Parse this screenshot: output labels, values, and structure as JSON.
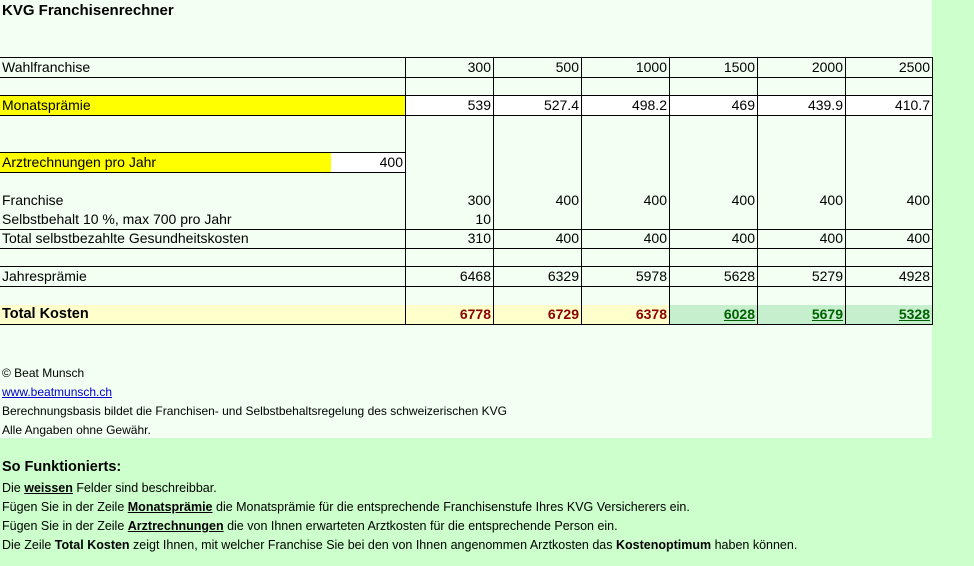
{
  "title": "KVG Franchisenrechner",
  "rows": {
    "wahlfranchise": {
      "label": "Wahlfranchise",
      "values": [
        "300",
        "500",
        "1000",
        "1500",
        "2000",
        "2500"
      ]
    },
    "monatspraemie": {
      "label": "Monatsprämie",
      "values": [
        "539",
        "527.4",
        "498.2",
        "469",
        "439.9",
        "410.7"
      ]
    },
    "arztrechnungen": {
      "label": "Arztrechnungen pro Jahr",
      "value": "400"
    },
    "franchise": {
      "label": "Franchise",
      "values": [
        "300",
        "400",
        "400",
        "400",
        "400",
        "400"
      ]
    },
    "selbstbehalt": {
      "label": "Selbstbehalt 10 %, max 700 pro Jahr",
      "values": [
        "10"
      ]
    },
    "total_selbst": {
      "label": "Total selbstbezahlte Gesundheitskosten",
      "values": [
        "310",
        "400",
        "400",
        "400",
        "400",
        "400"
      ]
    },
    "jahrespraemie": {
      "label": "Jahresprämie",
      "values": [
        "6468",
        "6329",
        "5978",
        "5628",
        "5279",
        "4928"
      ]
    },
    "total_kosten": {
      "label": "Total Kosten",
      "values": [
        "6778",
        "6729",
        "6378",
        "6028",
        "5679",
        "5328"
      ]
    }
  },
  "footer": {
    "copyright": "© Beat Munsch",
    "link": "www.beatmunsch.ch",
    "basis": "Berechnungsbasis bildet die Franchisen- und Selbstbehaltsregelung des schweizerischen KVG",
    "disclaimer": "Alle Angaben ohne Gewähr."
  },
  "howto": {
    "heading": "So Funktionierts:",
    "l1": {
      "a": "Die ",
      "b": "weissen",
      "c": " Felder sind beschreibbar."
    },
    "l2": {
      "a": "Fügen Sie in der Zeile ",
      "b": "Monatsprämie",
      "c": " die Monatsprämie für die entsprechende Franchisenstufe Ihres KVG Versicherers ein."
    },
    "l3": {
      "a": "Fügen Sie in der Zeile ",
      "b": "Arztrechnungen",
      "c": " die von Ihnen erwarteten Arztkosten für die entsprechende Person ein."
    },
    "l4": {
      "a": "Die Zeile ",
      "b": "Total Kosten",
      "c": " zeigt Ihnen, mit welcher Franchise Sie bei den von Ihnen angenommen Arztkosten das ",
      "d": "Kostenoptimum",
      "e": " haben können."
    }
  },
  "colors": {
    "highlight": "#ffff00",
    "optimum_text": "#006100",
    "optimum_bg": "#c6efce",
    "cost_text": "#8b0000"
  }
}
